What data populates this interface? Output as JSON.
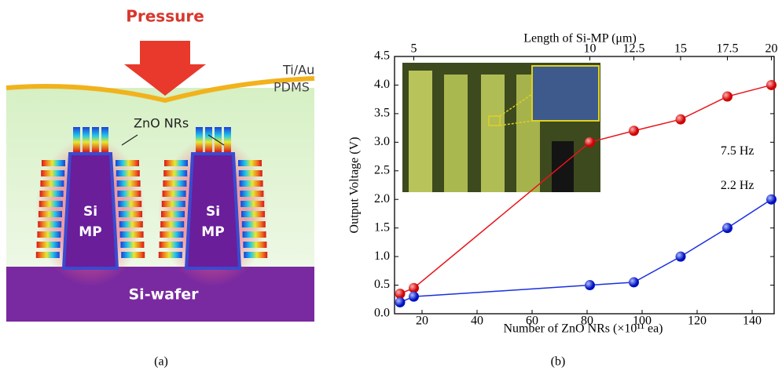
{
  "diagram": {
    "pressure": "Pressure",
    "electrode": "Ti/Au",
    "matrix": "PDMS",
    "nanorods": "ZnO NRs",
    "pillars": [
      {
        "top": "Si",
        "bottom": "MP"
      },
      {
        "top": "Si",
        "bottom": "MP"
      }
    ],
    "substrate": "Si-wafer",
    "caption": "(a)"
  },
  "chart_data": {
    "type": "line",
    "caption": "(b)",
    "xlabel": "Number of ZnO NRs (×10¹¹ ea)",
    "ylabel": "Output Voltage (V)",
    "x2label": "Length of Si-MP (μm)",
    "x": [
      12,
      17,
      81,
      97,
      114,
      131,
      147
    ],
    "series": [
      {
        "name": "7.5 Hz",
        "color": "#e8141a",
        "values": [
          0.35,
          0.45,
          3.0,
          3.2,
          3.4,
          3.8,
          4.0
        ]
      },
      {
        "name": "2.2 Hz",
        "color": "#1a2fe0",
        "values": [
          0.2,
          0.3,
          0.5,
          0.55,
          1.0,
          1.5,
          2.0
        ]
      }
    ],
    "xlim": [
      10,
      148
    ],
    "xticks": [
      20,
      40,
      60,
      80,
      100,
      120,
      140
    ],
    "x2ticks": [
      {
        "value": 17,
        "label": "5"
      },
      {
        "value": 81,
        "label": "10"
      },
      {
        "value": 97,
        "label": "12.5"
      },
      {
        "value": 114,
        "label": "15"
      },
      {
        "value": 131,
        "label": "17.5"
      },
      {
        "value": 147,
        "label": "20"
      }
    ],
    "ylim": [
      0,
      4.5
    ],
    "yticks": [
      {
        "value": 0,
        "label": "0.0"
      },
      0.5,
      {
        "value": 1,
        "label": "1.0"
      },
      1.5,
      {
        "value": 2,
        "label": "2.0"
      },
      2.5,
      {
        "value": 3,
        "label": "3.0"
      },
      3.5,
      {
        "value": 4,
        "label": "4.0"
      },
      4.5
    ]
  }
}
